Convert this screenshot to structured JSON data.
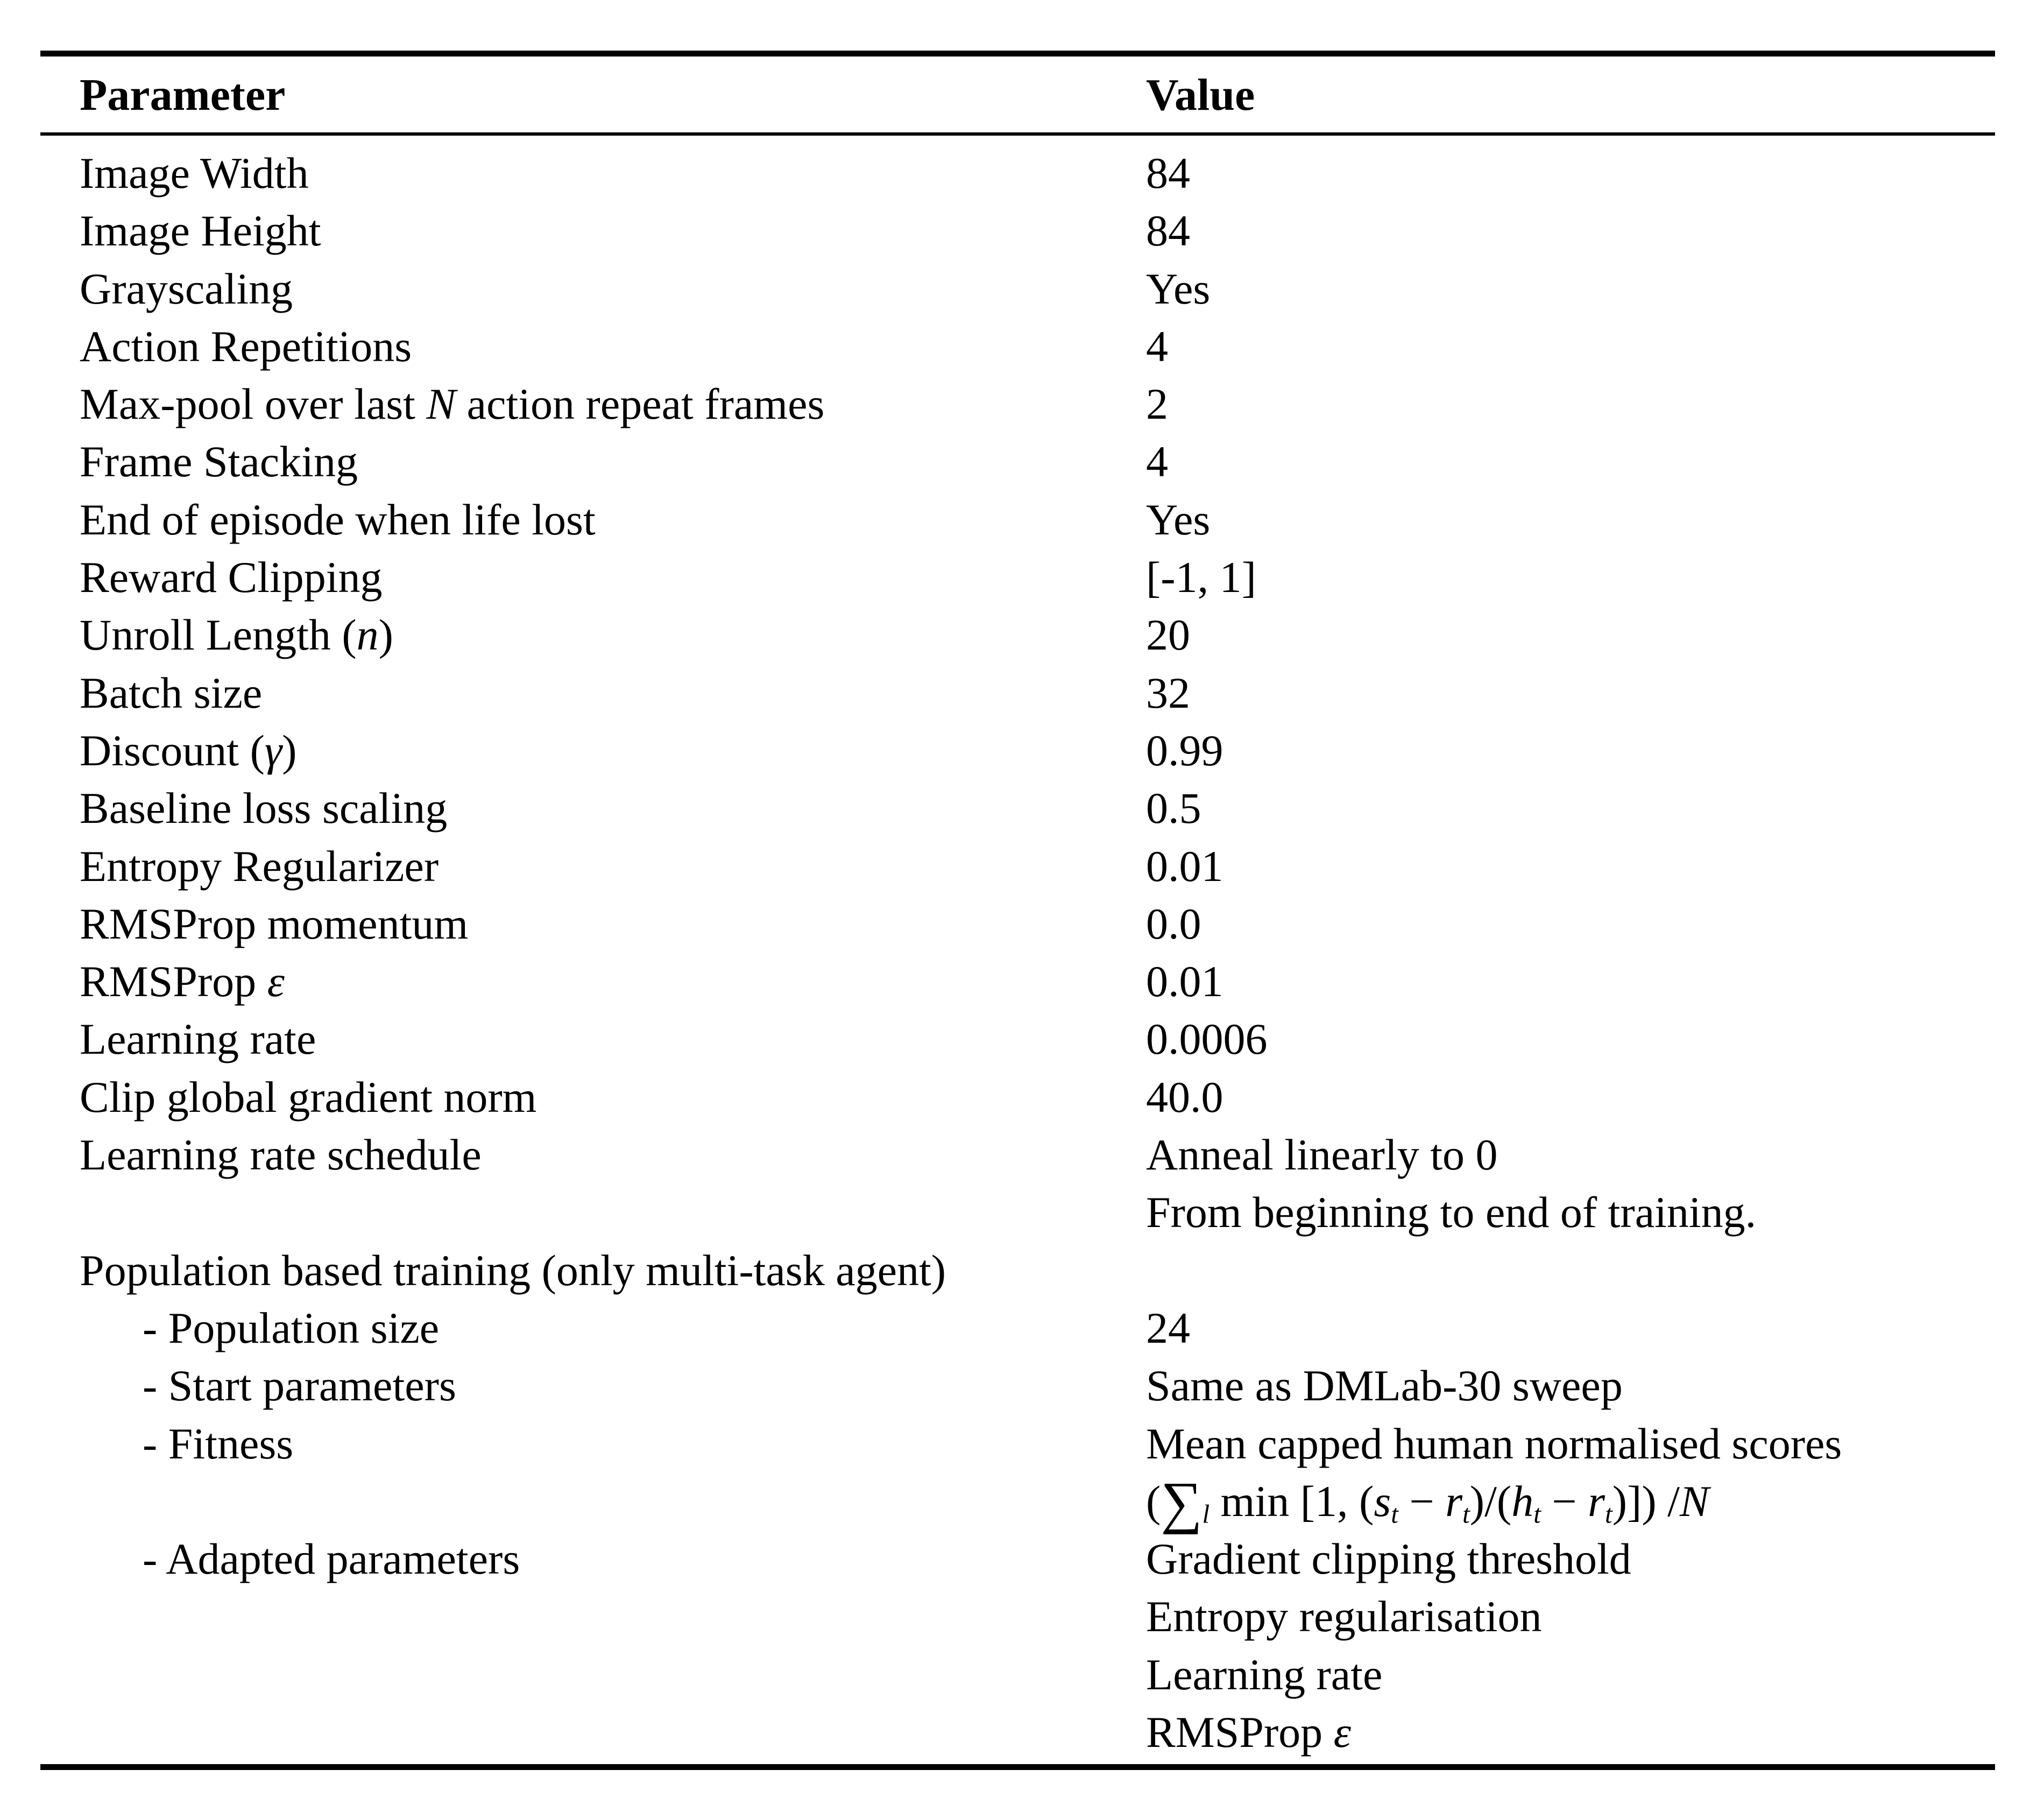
{
  "page": {
    "background": "#ffffff",
    "text_color": "#000000",
    "rule_color": "#000000"
  },
  "table": {
    "headers": {
      "parameter": "Parameter",
      "value": "Value"
    },
    "rows": [
      {
        "param": "Image Width",
        "value": "84"
      },
      {
        "param": "Image Height",
        "value": "84"
      },
      {
        "param": "Grayscaling",
        "value": "Yes"
      },
      {
        "param": "Action Repetitions",
        "value": "4"
      },
      {
        "param_parts": {
          "pre": "Max-pool over last ",
          "math": "N",
          "post": " action repeat frames"
        },
        "value": "2"
      },
      {
        "param": "Frame Stacking",
        "value": "4"
      },
      {
        "param": "End of episode when life lost",
        "value": "Yes"
      },
      {
        "param": "Reward Clipping",
        "value": "[-1, 1]"
      },
      {
        "param_parts": {
          "pre": "Unroll Length (",
          "math": "n",
          "post": ")"
        },
        "value": "20"
      },
      {
        "param": "Batch size",
        "value": "32"
      },
      {
        "param_parts": {
          "pre": "Discount (",
          "math": "γ",
          "post": ")"
        },
        "value": "0.99"
      },
      {
        "param": "Baseline loss scaling",
        "value": "0.5"
      },
      {
        "param": "Entropy Regularizer",
        "value": "0.01"
      },
      {
        "param": "RMSProp momentum",
        "value": "0.0"
      },
      {
        "param_parts": {
          "pre": "RMSProp ",
          "math": "ε",
          "post": ""
        },
        "value": "0.01"
      },
      {
        "param": "Learning rate",
        "value": "0.0006"
      },
      {
        "param": "Clip global gradient norm",
        "value": "40.0"
      },
      {
        "param": "Learning rate schedule",
        "value": "Anneal linearly to 0"
      },
      {
        "param": "",
        "value": "From beginning to end of training."
      },
      {
        "param": "Population based training (only multi-task agent)",
        "value": ""
      },
      {
        "param": "- Population size",
        "value": "24"
      },
      {
        "param": "- Start parameters",
        "value": "Same as DMLab-30 sweep"
      },
      {
        "param": "- Fitness",
        "value": "Mean capped human normalised scores"
      },
      {
        "param": "",
        "formula": {
          "p1": "(",
          "sum": "∑",
          "sub_l": "l",
          "p2": " min [1, (",
          "s": "s",
          "t1": "t",
          "m1": " − ",
          "r1": "r",
          "t2": "t",
          "p3": ")/(",
          "h": "h",
          "t3": "t",
          "m2": " − ",
          "r2": "r",
          "t4": "t",
          "p4": ")]) /",
          "N": "N"
        }
      },
      {
        "param": "- Adapted parameters",
        "value": "Gradient clipping threshold"
      },
      {
        "param": "",
        "value": "Entropy regularisation"
      },
      {
        "param": "",
        "value": "Learning rate"
      },
      {
        "param": "",
        "value_parts": {
          "pre": "RMSProp ",
          "math": "ε",
          "post": ""
        }
      }
    ]
  }
}
